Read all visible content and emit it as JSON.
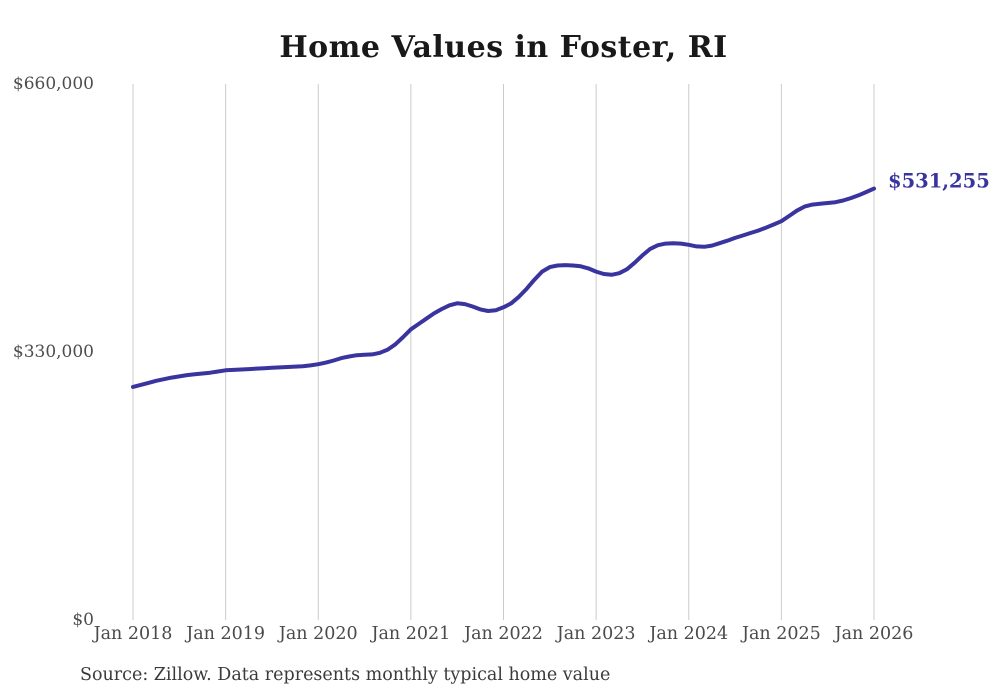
{
  "chart_data": {
    "type": "line",
    "title": "Home Values in Foster, RI",
    "source_note": "Source: Zillow. Data represents monthly typical home value",
    "end_label": "$531,255",
    "latest_value": 531255,
    "line_color": "#3a349e",
    "grid_color": "#cccccc",
    "ylim": [
      0,
      660000
    ],
    "y_ticks": [
      {
        "label": "$0",
        "value": 0
      },
      {
        "label": "$330,000",
        "value": 330000
      },
      {
        "label": "$660,000",
        "value": 660000
      }
    ],
    "x_ticks": [
      "Jan 2018",
      "Jan 2019",
      "Jan 2020",
      "Jan 2021",
      "Jan 2022",
      "Jan 2023",
      "Jan 2024",
      "Jan 2025",
      "Jan 2026"
    ],
    "x_interval": "monthly",
    "months_per_tick": 12,
    "legend": "none",
    "grid": "vertical-only",
    "series": [
      {
        "name": "Monthly typical home value",
        "start": "Jan 2018",
        "end": "Jan 2026",
        "values": [
          287000,
          289500,
          292000,
          294500,
          296500,
          298500,
          300000,
          301500,
          302500,
          303500,
          304500,
          306000,
          307500,
          308000,
          308500,
          309000,
          309500,
          310000,
          310500,
          311000,
          311500,
          312000,
          312500,
          313500,
          315000,
          317000,
          319500,
          322500,
          324500,
          326000,
          326500,
          327000,
          329000,
          333000,
          339500,
          348500,
          358000,
          364500,
          371000,
          377500,
          383000,
          387500,
          390000,
          389000,
          386000,
          382500,
          380500,
          381500,
          385000,
          390000,
          398000,
          408000,
          419000,
          429000,
          434500,
          436500,
          437000,
          436500,
          435500,
          433000,
          429000,
          426000,
          425000,
          427000,
          432000,
          440000,
          449000,
          457000,
          461500,
          463500,
          464000,
          463500,
          462000,
          460000,
          459500,
          461000,
          464000,
          467000,
          470500,
          473500,
          476500,
          479500,
          483000,
          487000,
          491000,
          497500,
          504000,
          509000,
          511500,
          512500,
          513500,
          514500,
          516500,
          519500,
          523000,
          527000,
          531255
        ]
      }
    ]
  }
}
